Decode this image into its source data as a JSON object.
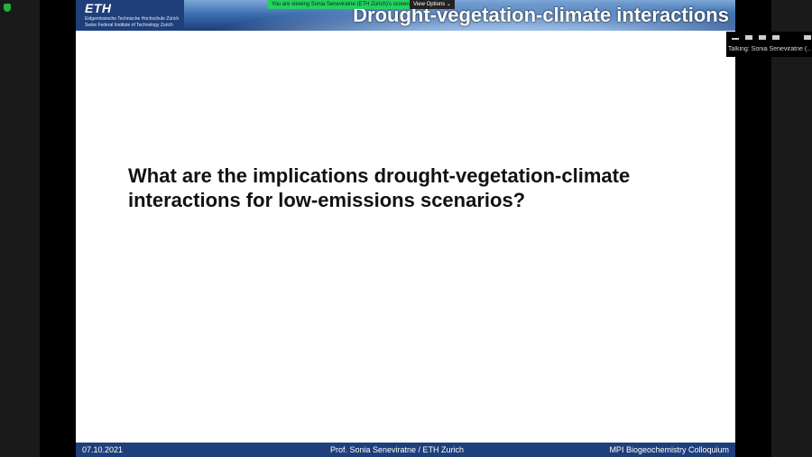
{
  "share_banner": {
    "viewing_text": "You are viewing Sonia Seneviratne (ETH Zürich)'s screen",
    "view_options_label": "View Options"
  },
  "slide": {
    "header": {
      "logo_text": "ETH",
      "institution_de": "Eidgenössische Technische Hochschule Zürich",
      "institution_en": "Swiss Federal Institute of Technology Zurich",
      "title": "Drought-vegetation-climate interactions"
    },
    "question_line1": "What are the implications drought-vegetation-climate",
    "question_line2": "interactions for low-emissions scenarios?",
    "footer": {
      "date": "07.10.2021",
      "presenter": "Prof. Sonia Seneviratne / ETH Zurich",
      "event": "MPI Biogeochemistry Colloquium"
    }
  },
  "speaker_panel": {
    "talking_text": "Talking: Sonia Seneviratne (..."
  },
  "colors": {
    "slide_blue": "#1f3f7a",
    "share_green": "#23d160",
    "security_green": "#1fb141"
  }
}
